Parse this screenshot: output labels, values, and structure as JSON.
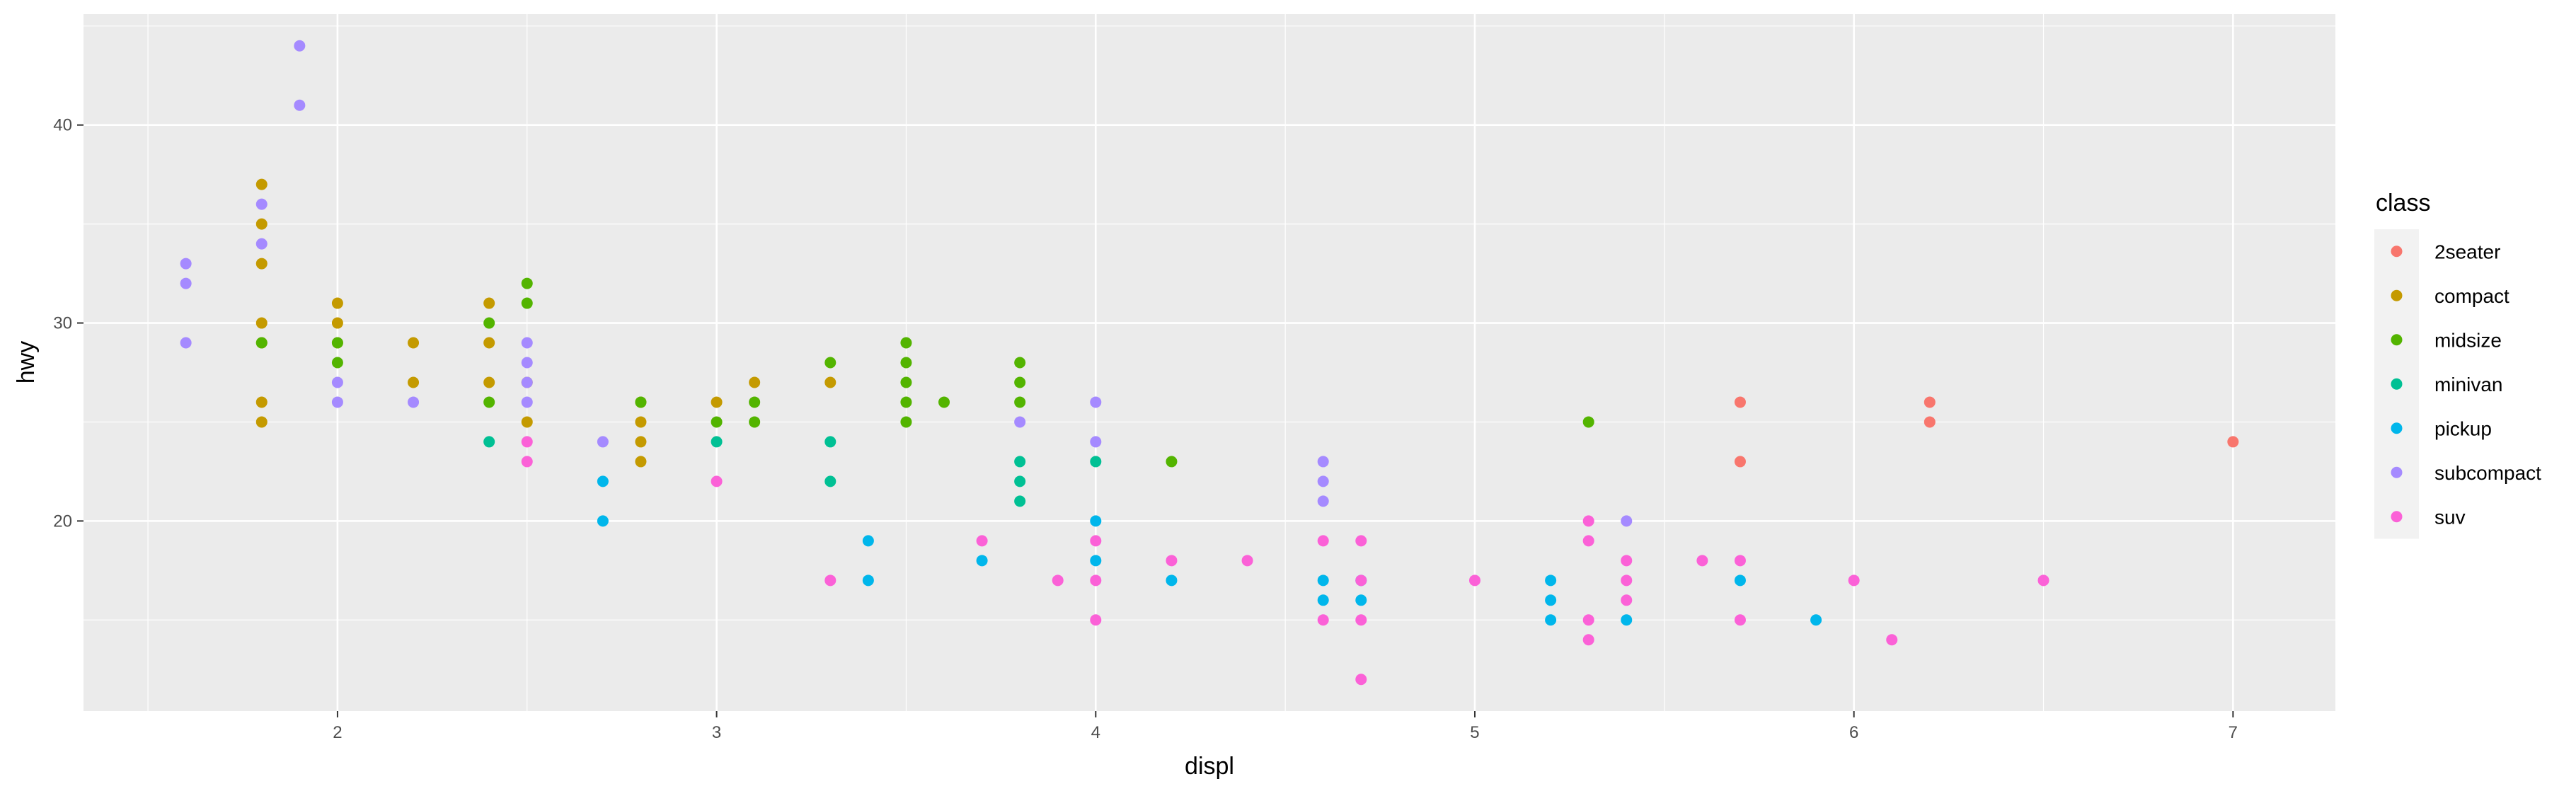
{
  "chart_data": {
    "type": "scatter",
    "title": "",
    "xlabel": "displ",
    "ylabel": "hwy",
    "xlim": [
      1.33,
      7.27
    ],
    "ylim": [
      10.4,
      45.6
    ],
    "xticks": [
      2,
      3,
      4,
      5,
      6,
      7
    ],
    "yticks": [
      20,
      30,
      40
    ],
    "grid": true,
    "legend": {
      "title": "class",
      "position": "right"
    },
    "series": [
      {
        "name": "2seater",
        "color": "#F8766D",
        "points": [
          [
            5.7,
            26
          ],
          [
            5.7,
            23
          ],
          [
            6.2,
            26
          ],
          [
            6.2,
            25
          ],
          [
            7.0,
            24
          ]
        ]
      },
      {
        "name": "compact",
        "color": "#C49A00",
        "points": [
          [
            1.8,
            37
          ],
          [
            1.8,
            35
          ],
          [
            1.8,
            33
          ],
          [
            1.8,
            30
          ],
          [
            1.8,
            29
          ],
          [
            1.8,
            26
          ],
          [
            1.8,
            25
          ],
          [
            2.0,
            31
          ],
          [
            2.0,
            30
          ],
          [
            2.0,
            29
          ],
          [
            2.2,
            29
          ],
          [
            2.2,
            27
          ],
          [
            2.4,
            31
          ],
          [
            2.4,
            29
          ],
          [
            2.4,
            27
          ],
          [
            2.5,
            27
          ],
          [
            2.5,
            25
          ],
          [
            2.8,
            26
          ],
          [
            2.8,
            25
          ],
          [
            2.8,
            24
          ],
          [
            2.8,
            23
          ],
          [
            3.0,
            26
          ],
          [
            3.1,
            27
          ],
          [
            3.3,
            27
          ]
        ]
      },
      {
        "name": "midsize",
        "color": "#53B400",
        "points": [
          [
            1.8,
            29
          ],
          [
            2.0,
            29
          ],
          [
            2.0,
            28
          ],
          [
            2.4,
            30
          ],
          [
            2.4,
            26
          ],
          [
            2.5,
            32
          ],
          [
            2.5,
            31
          ],
          [
            2.8,
            26
          ],
          [
            3.0,
            25
          ],
          [
            3.1,
            26
          ],
          [
            3.1,
            25
          ],
          [
            3.3,
            28
          ],
          [
            3.5,
            29
          ],
          [
            3.5,
            28
          ],
          [
            3.5,
            27
          ],
          [
            3.5,
            26
          ],
          [
            3.5,
            25
          ],
          [
            3.6,
            26
          ],
          [
            3.8,
            28
          ],
          [
            3.8,
            27
          ],
          [
            3.8,
            26
          ],
          [
            4.2,
            23
          ],
          [
            5.3,
            25
          ]
        ]
      },
      {
        "name": "minivan",
        "color": "#00C094",
        "points": [
          [
            2.4,
            24
          ],
          [
            3.0,
            24
          ],
          [
            3.3,
            24
          ],
          [
            3.3,
            22
          ],
          [
            3.8,
            23
          ],
          [
            3.8,
            22
          ],
          [
            3.8,
            21
          ],
          [
            4.0,
            23
          ]
        ]
      },
      {
        "name": "pickup",
        "color": "#00B6EB",
        "points": [
          [
            2.7,
            22
          ],
          [
            2.7,
            20
          ],
          [
            3.4,
            19
          ],
          [
            3.4,
            17
          ],
          [
            3.7,
            18
          ],
          [
            4.0,
            20
          ],
          [
            4.0,
            18
          ],
          [
            4.2,
            17
          ],
          [
            4.6,
            17
          ],
          [
            4.6,
            16
          ],
          [
            4.7,
            17
          ],
          [
            4.7,
            16
          ],
          [
            5.2,
            17
          ],
          [
            5.2,
            16
          ],
          [
            5.2,
            15
          ],
          [
            5.4,
            15
          ],
          [
            5.7,
            17
          ],
          [
            5.9,
            15
          ]
        ]
      },
      {
        "name": "subcompact",
        "color": "#A58AFF",
        "points": [
          [
            1.6,
            33
          ],
          [
            1.6,
            32
          ],
          [
            1.6,
            29
          ],
          [
            1.8,
            36
          ],
          [
            1.8,
            34
          ],
          [
            1.9,
            44
          ],
          [
            1.9,
            41
          ],
          [
            2.0,
            27
          ],
          [
            2.0,
            26
          ],
          [
            2.2,
            26
          ],
          [
            2.5,
            29
          ],
          [
            2.5,
            28
          ],
          [
            2.5,
            27
          ],
          [
            2.5,
            26
          ],
          [
            2.7,
            24
          ],
          [
            3.8,
            25
          ],
          [
            4.0,
            26
          ],
          [
            4.0,
            24
          ],
          [
            4.6,
            23
          ],
          [
            4.6,
            22
          ],
          [
            4.6,
            21
          ],
          [
            5.4,
            20
          ]
        ]
      },
      {
        "name": "suv",
        "color": "#FB61D7",
        "points": [
          [
            2.5,
            24
          ],
          [
            2.5,
            23
          ],
          [
            3.0,
            22
          ],
          [
            3.3,
            17
          ],
          [
            3.7,
            19
          ],
          [
            3.9,
            17
          ],
          [
            4.0,
            19
          ],
          [
            4.0,
            17
          ],
          [
            4.0,
            15
          ],
          [
            4.2,
            18
          ],
          [
            4.4,
            18
          ],
          [
            4.6,
            19
          ],
          [
            4.6,
            15
          ],
          [
            4.7,
            19
          ],
          [
            4.7,
            17
          ],
          [
            4.7,
            15
          ],
          [
            4.7,
            12
          ],
          [
            5.0,
            17
          ],
          [
            5.3,
            20
          ],
          [
            5.3,
            19
          ],
          [
            5.3,
            15
          ],
          [
            5.3,
            14
          ],
          [
            5.4,
            18
          ],
          [
            5.4,
            17
          ],
          [
            5.4,
            16
          ],
          [
            5.6,
            18
          ],
          [
            5.7,
            18
          ],
          [
            5.7,
            15
          ],
          [
            6.0,
            17
          ],
          [
            6.1,
            14
          ],
          [
            6.5,
            17
          ]
        ]
      }
    ]
  }
}
